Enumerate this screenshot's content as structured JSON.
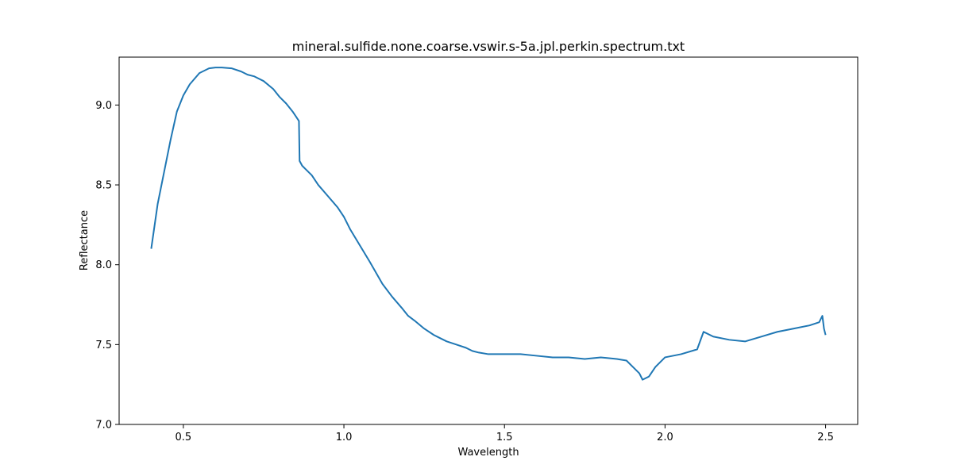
{
  "chart_data": {
    "type": "line",
    "title": "mineral.sulfide.none.coarse.vswir.s-5a.jpl.perkin.spectrum.txt",
    "xlabel": "Wavelength",
    "ylabel": "Reflectance",
    "xlim": [
      0.3,
      2.6
    ],
    "ylim": [
      7.0,
      9.3
    ],
    "xticks": [
      0.5,
      1.0,
      1.5,
      2.0,
      2.5
    ],
    "xtick_labels": [
      "0.5",
      "1.0",
      "1.5",
      "2.0",
      "2.5"
    ],
    "yticks": [
      7.0,
      7.5,
      8.0,
      8.5,
      9.0
    ],
    "ytick_labels": [
      "7.0",
      "7.5",
      "8.0",
      "8.5",
      "9.0"
    ],
    "grid": false,
    "series": [
      {
        "color": "#1f77b4",
        "x": [
          0.4,
          0.42,
          0.44,
          0.46,
          0.48,
          0.5,
          0.52,
          0.55,
          0.58,
          0.6,
          0.62,
          0.65,
          0.68,
          0.7,
          0.72,
          0.75,
          0.78,
          0.8,
          0.82,
          0.84,
          0.85,
          0.86,
          0.862,
          0.87,
          0.88,
          0.9,
          0.92,
          0.95,
          0.98,
          1.0,
          1.02,
          1.05,
          1.08,
          1.1,
          1.12,
          1.15,
          1.18,
          1.2,
          1.22,
          1.25,
          1.28,
          1.3,
          1.32,
          1.35,
          1.38,
          1.4,
          1.42,
          1.45,
          1.5,
          1.55,
          1.6,
          1.65,
          1.7,
          1.75,
          1.8,
          1.85,
          1.88,
          1.9,
          1.92,
          1.93,
          1.95,
          1.97,
          2.0,
          2.05,
          2.1,
          2.12,
          2.15,
          2.2,
          2.25,
          2.3,
          2.35,
          2.4,
          2.45,
          2.48,
          2.49,
          2.495,
          2.5
        ],
        "y": [
          8.1,
          8.38,
          8.58,
          8.78,
          8.96,
          9.06,
          9.13,
          9.2,
          9.23,
          9.235,
          9.235,
          9.23,
          9.21,
          9.19,
          9.18,
          9.15,
          9.1,
          9.05,
          9.01,
          8.96,
          8.93,
          8.9,
          8.65,
          8.62,
          8.6,
          8.56,
          8.5,
          8.43,
          8.36,
          8.3,
          8.22,
          8.12,
          8.02,
          7.95,
          7.88,
          7.8,
          7.73,
          7.68,
          7.65,
          7.6,
          7.56,
          7.54,
          7.52,
          7.5,
          7.48,
          7.46,
          7.45,
          7.44,
          7.44,
          7.44,
          7.43,
          7.42,
          7.42,
          7.41,
          7.42,
          7.41,
          7.4,
          7.36,
          7.32,
          7.28,
          7.3,
          7.36,
          7.42,
          7.44,
          7.47,
          7.58,
          7.55,
          7.53,
          7.52,
          7.55,
          7.58,
          7.6,
          7.62,
          7.64,
          7.68,
          7.6,
          7.56
        ]
      }
    ]
  }
}
